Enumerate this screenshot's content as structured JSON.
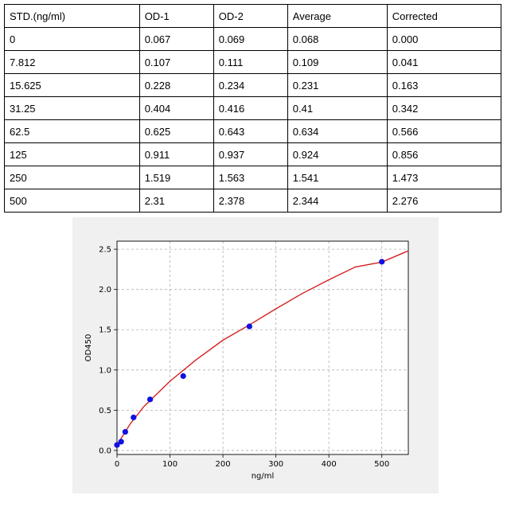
{
  "table": {
    "headers": [
      "STD.(ng/ml)",
      "OD-1",
      "OD-2",
      "Average",
      "Corrected"
    ],
    "rows": [
      [
        "0",
        "0.067",
        "0.069",
        "0.068",
        "0.000"
      ],
      [
        "7.812",
        "0.107",
        "0.111",
        "0.109",
        "0.041"
      ],
      [
        "15.625",
        "0.228",
        "0.234",
        "0.231",
        "0.163"
      ],
      [
        "31.25",
        "0.404",
        "0.416",
        "0.41",
        "0.342"
      ],
      [
        "62.5",
        "0.625",
        "0.643",
        "0.634",
        "0.566"
      ],
      [
        "125",
        "0.911",
        "0.937",
        "0.924",
        "0.856"
      ],
      [
        "250",
        "1.519",
        "1.563",
        "1.541",
        "1.473"
      ],
      [
        "500",
        "2.31",
        "2.378",
        "2.344",
        "2.276"
      ]
    ]
  },
  "chart_data": {
    "type": "scatter",
    "title": "",
    "xlabel": "ng/ml",
    "ylabel": "OD450",
    "xlim": [
      0,
      550
    ],
    "ylim": [
      -0.05,
      2.6
    ],
    "xticks": [
      0,
      100,
      200,
      300,
      400,
      500
    ],
    "yticks": [
      0.0,
      0.5,
      1.0,
      1.5,
      2.0,
      2.5
    ],
    "xtick_labels": [
      "0",
      "100",
      "200",
      "300",
      "400",
      "500"
    ],
    "ytick_labels": [
      "0.0",
      "0.5",
      "1.0",
      "1.5",
      "2.0",
      "2.5"
    ],
    "grid": true,
    "series": [
      {
        "points": [
          [
            0,
            0.068
          ],
          [
            7.812,
            0.109
          ],
          [
            15.625,
            0.231
          ],
          [
            31.25,
            0.41
          ],
          [
            62.5,
            0.634
          ],
          [
            125,
            0.924
          ],
          [
            250,
            1.541
          ],
          [
            500,
            2.344
          ]
        ],
        "marker_color": "#1010e0"
      }
    ],
    "fit_curve": {
      "color": "#d62020",
      "points": [
        [
          0,
          0.07
        ],
        [
          25,
          0.33
        ],
        [
          50,
          0.54
        ],
        [
          100,
          0.86
        ],
        [
          150,
          1.13
        ],
        [
          200,
          1.37
        ],
        [
          250,
          1.56
        ],
        [
          300,
          1.76
        ],
        [
          350,
          1.95
        ],
        [
          400,
          2.12
        ],
        [
          450,
          2.28
        ],
        [
          500,
          2.34
        ],
        [
          550,
          2.48
        ]
      ]
    },
    "colors": {
      "panel_bg": "#f0f0f0",
      "grid": "#b0b0b0"
    }
  }
}
